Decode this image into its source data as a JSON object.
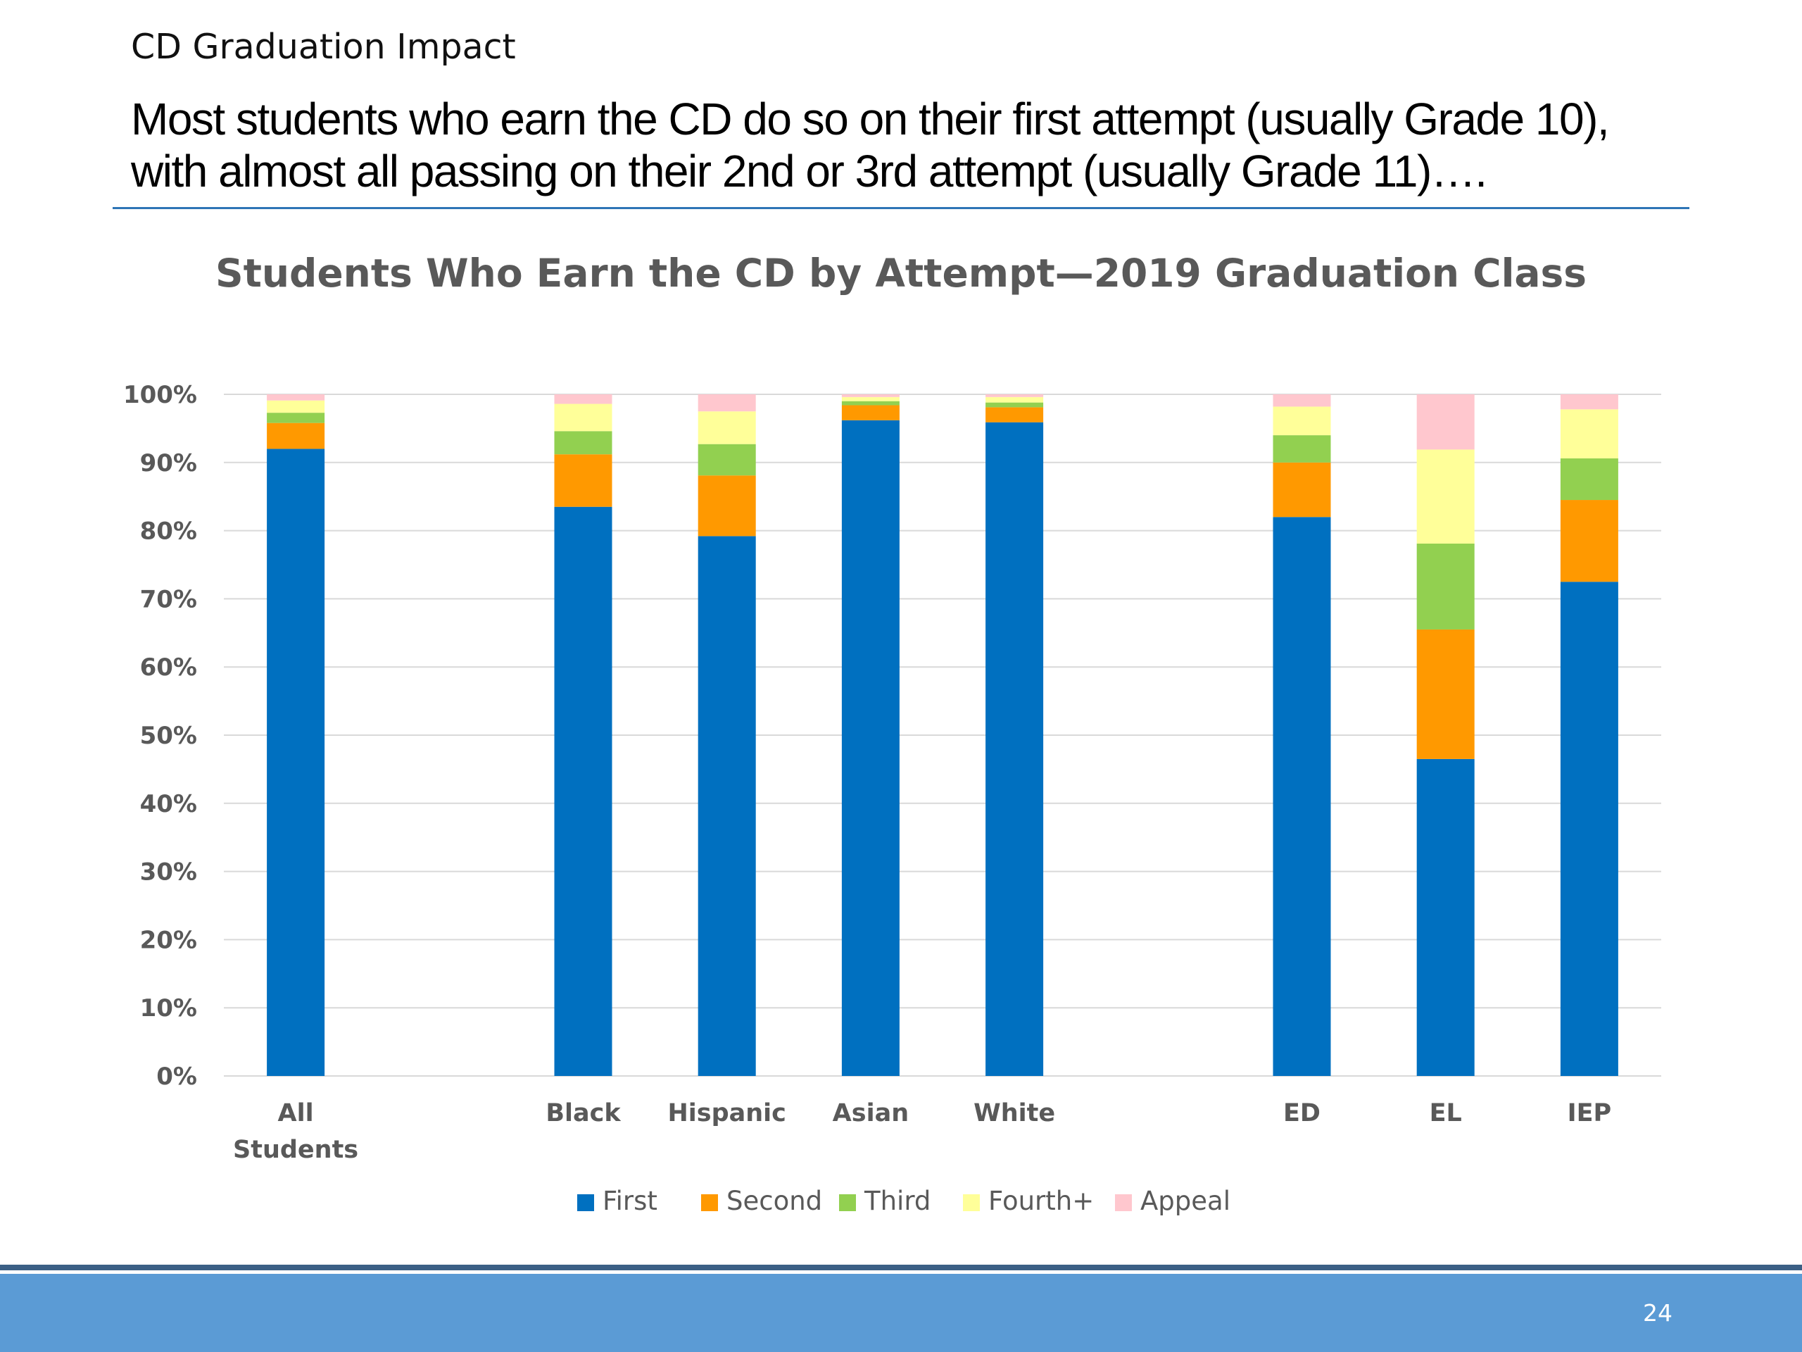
{
  "slide": {
    "section_label": "CD Graduation Impact",
    "headline_line1": "Most students who earn the CD do so on their first attempt (usually Grade 10),",
    "headline_line2": "with almost all passing on their 2nd or 3rd attempt (usually Grade 11)….",
    "page_number": "24"
  },
  "colors": {
    "First": "#0070C0",
    "Second": "#FF9900",
    "Third": "#92D050",
    "Fourth+": "#FFFF99",
    "Appeal": "#FFC7CE",
    "rule": "#2E75B6",
    "footer": "#5B9BD5"
  },
  "chart_data": {
    "type": "bar",
    "stacked": true,
    "title": "Students Who Earn the CD by Attempt—2019 Graduation Class",
    "xlabel": "",
    "ylabel": "",
    "ylim": [
      0,
      100
    ],
    "yticks": [
      "0%",
      "10%",
      "20%",
      "30%",
      "40%",
      "50%",
      "60%",
      "70%",
      "80%",
      "90%",
      "100%"
    ],
    "gridlines": true,
    "legend_position": "bottom",
    "categories": [
      "All Students",
      "",
      "Black",
      "Hispanic",
      "Asian",
      "White",
      "",
      "ED",
      "EL",
      "IEP"
    ],
    "series": [
      {
        "name": "First",
        "values": [
          92.0,
          null,
          83.5,
          79.2,
          96.2,
          95.9,
          null,
          82.0,
          46.5,
          72.5
        ]
      },
      {
        "name": "Second",
        "values": [
          3.8,
          null,
          7.7,
          8.9,
          2.2,
          2.2,
          null,
          8.0,
          19.0,
          12.0
        ]
      },
      {
        "name": "Third",
        "values": [
          1.5,
          null,
          3.4,
          4.6,
          0.6,
          0.7,
          null,
          4.0,
          12.6,
          6.1
        ]
      },
      {
        "name": "Fourth+",
        "values": [
          1.8,
          null,
          4.0,
          4.8,
          0.6,
          0.8,
          null,
          4.2,
          13.8,
          7.2
        ]
      },
      {
        "name": "Appeal",
        "values": [
          0.9,
          null,
          1.4,
          2.5,
          0.4,
          0.4,
          null,
          1.8,
          8.1,
          2.2
        ]
      }
    ]
  }
}
